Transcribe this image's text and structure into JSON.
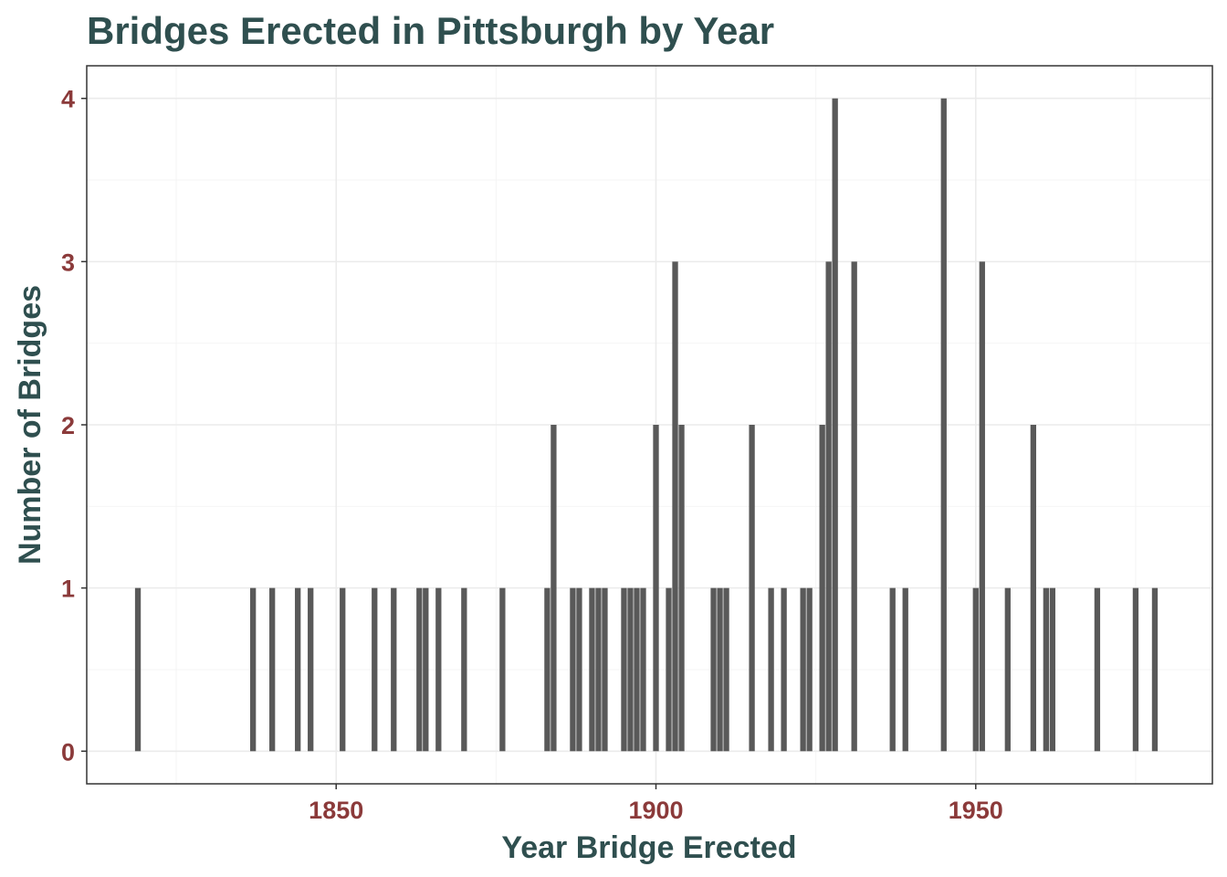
{
  "colors": {
    "title": "#2F4F4F",
    "axis_title": "#2F4F4F",
    "tick_label": "#8B3A3A",
    "bar": "#595959",
    "grid_major": "#EBEBEB",
    "grid_minor": "#F4F4F4",
    "panel_border": "#333333",
    "background": "#FFFFFF"
  },
  "chart_data": {
    "type": "bar",
    "title": "Bridges Erected in Pittsburgh by Year",
    "xlabel": "Year Bridge Erected",
    "ylabel": "Number of Bridges",
    "xlim": [
      1811,
      1987
    ],
    "ylim": [
      -0.2,
      4.2
    ],
    "x_ticks": [
      1850,
      1900,
      1950
    ],
    "x_tick_labels": [
      "1850",
      "1900",
      "1950"
    ],
    "x_minor_ticks": [
      1825,
      1875,
      1925,
      1975
    ],
    "y_ticks": [
      0,
      1,
      2,
      3,
      4
    ],
    "y_tick_labels": [
      "0",
      "1",
      "2",
      "3",
      "4"
    ],
    "y_minor_ticks": [
      0.5,
      1.5,
      2.5,
      3.5
    ],
    "grid": true,
    "legend": "none",
    "bars": [
      {
        "x": 1819,
        "y": 1
      },
      {
        "x": 1837,
        "y": 1
      },
      {
        "x": 1840,
        "y": 1
      },
      {
        "x": 1844,
        "y": 1
      },
      {
        "x": 1846,
        "y": 1
      },
      {
        "x": 1851,
        "y": 1
      },
      {
        "x": 1856,
        "y": 1
      },
      {
        "x": 1859,
        "y": 1
      },
      {
        "x": 1863,
        "y": 1
      },
      {
        "x": 1864,
        "y": 1
      },
      {
        "x": 1866,
        "y": 1
      },
      {
        "x": 1870,
        "y": 1
      },
      {
        "x": 1876,
        "y": 1
      },
      {
        "x": 1883,
        "y": 1
      },
      {
        "x": 1884,
        "y": 2
      },
      {
        "x": 1887,
        "y": 1
      },
      {
        "x": 1888,
        "y": 1
      },
      {
        "x": 1890,
        "y": 1
      },
      {
        "x": 1891,
        "y": 1
      },
      {
        "x": 1892,
        "y": 1
      },
      {
        "x": 1895,
        "y": 1
      },
      {
        "x": 1896,
        "y": 1
      },
      {
        "x": 1897,
        "y": 1
      },
      {
        "x": 1898,
        "y": 1
      },
      {
        "x": 1900,
        "y": 2
      },
      {
        "x": 1902,
        "y": 1
      },
      {
        "x": 1903,
        "y": 3
      },
      {
        "x": 1904,
        "y": 2
      },
      {
        "x": 1909,
        "y": 1
      },
      {
        "x": 1910,
        "y": 1
      },
      {
        "x": 1911,
        "y": 1
      },
      {
        "x": 1915,
        "y": 2
      },
      {
        "x": 1918,
        "y": 1
      },
      {
        "x": 1920,
        "y": 1
      },
      {
        "x": 1923,
        "y": 1
      },
      {
        "x": 1924,
        "y": 1
      },
      {
        "x": 1926,
        "y": 2
      },
      {
        "x": 1927,
        "y": 3
      },
      {
        "x": 1928,
        "y": 4
      },
      {
        "x": 1931,
        "y": 3
      },
      {
        "x": 1937,
        "y": 1
      },
      {
        "x": 1939,
        "y": 1
      },
      {
        "x": 1945,
        "y": 4
      },
      {
        "x": 1950,
        "y": 1
      },
      {
        "x": 1951,
        "y": 3
      },
      {
        "x": 1955,
        "y": 1
      },
      {
        "x": 1959,
        "y": 2
      },
      {
        "x": 1961,
        "y": 1
      },
      {
        "x": 1962,
        "y": 1
      },
      {
        "x": 1969,
        "y": 1
      },
      {
        "x": 1975,
        "y": 1
      },
      {
        "x": 1978,
        "y": 1
      }
    ]
  }
}
